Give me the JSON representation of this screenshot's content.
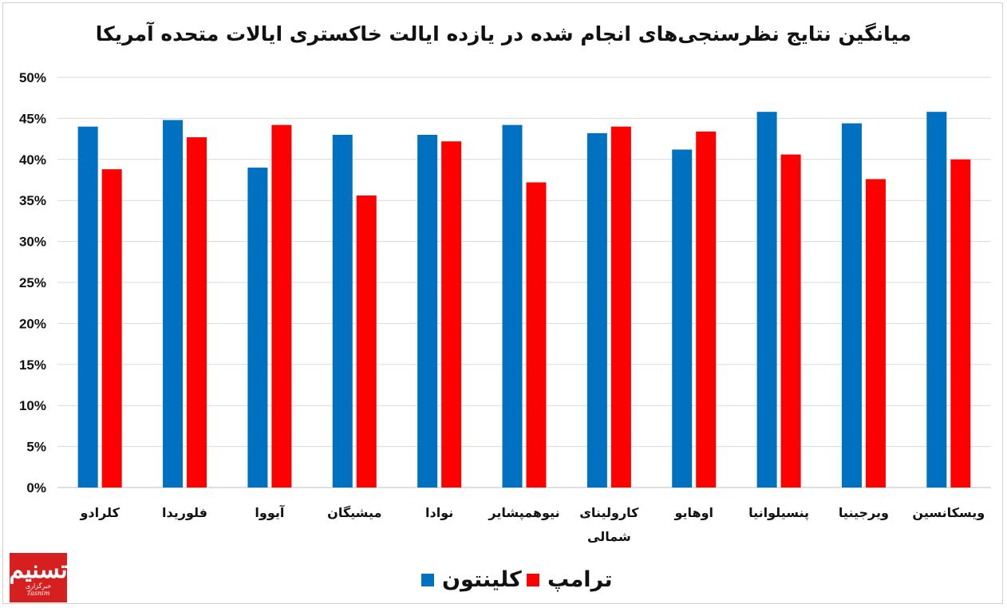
{
  "chart_data": {
    "type": "bar",
    "title": "میانگین نتایج نظرسنجی‌های انجام شده در یازده ایالت خاکستری ایالات متحده آمریکا",
    "categories": [
      "کلرادو",
      "فلوریدا",
      "آیووا",
      "میشیگان",
      "نوادا",
      "نیوهمپشایر",
      "کارولینای شمالی",
      "اوهایو",
      "پنسیلوانیا",
      "ویرجینیا",
      "ویسکانسین"
    ],
    "series": [
      {
        "name": "کلینتون",
        "color": "#0070c0",
        "values": [
          44.0,
          44.8,
          39.0,
          43.0,
          43.0,
          44.2,
          43.2,
          41.2,
          45.8,
          44.4,
          45.8
        ]
      },
      {
        "name": "ترامپ",
        "color": "#ff0000",
        "values": [
          38.8,
          42.7,
          44.2,
          35.6,
          42.2,
          37.2,
          44.0,
          43.4,
          40.6,
          37.6,
          40.0
        ]
      }
    ],
    "ylim": [
      0,
      50
    ],
    "yticks": [
      "0%",
      "5%",
      "10%",
      "15%",
      "20%",
      "25%",
      "30%",
      "35%",
      "40%",
      "45%",
      "50%"
    ],
    "grid": true,
    "legend": "bottom-center"
  },
  "logo": {
    "mark": "تسنیم",
    "text": "خبرگزاری",
    "en": "Tasnim"
  }
}
